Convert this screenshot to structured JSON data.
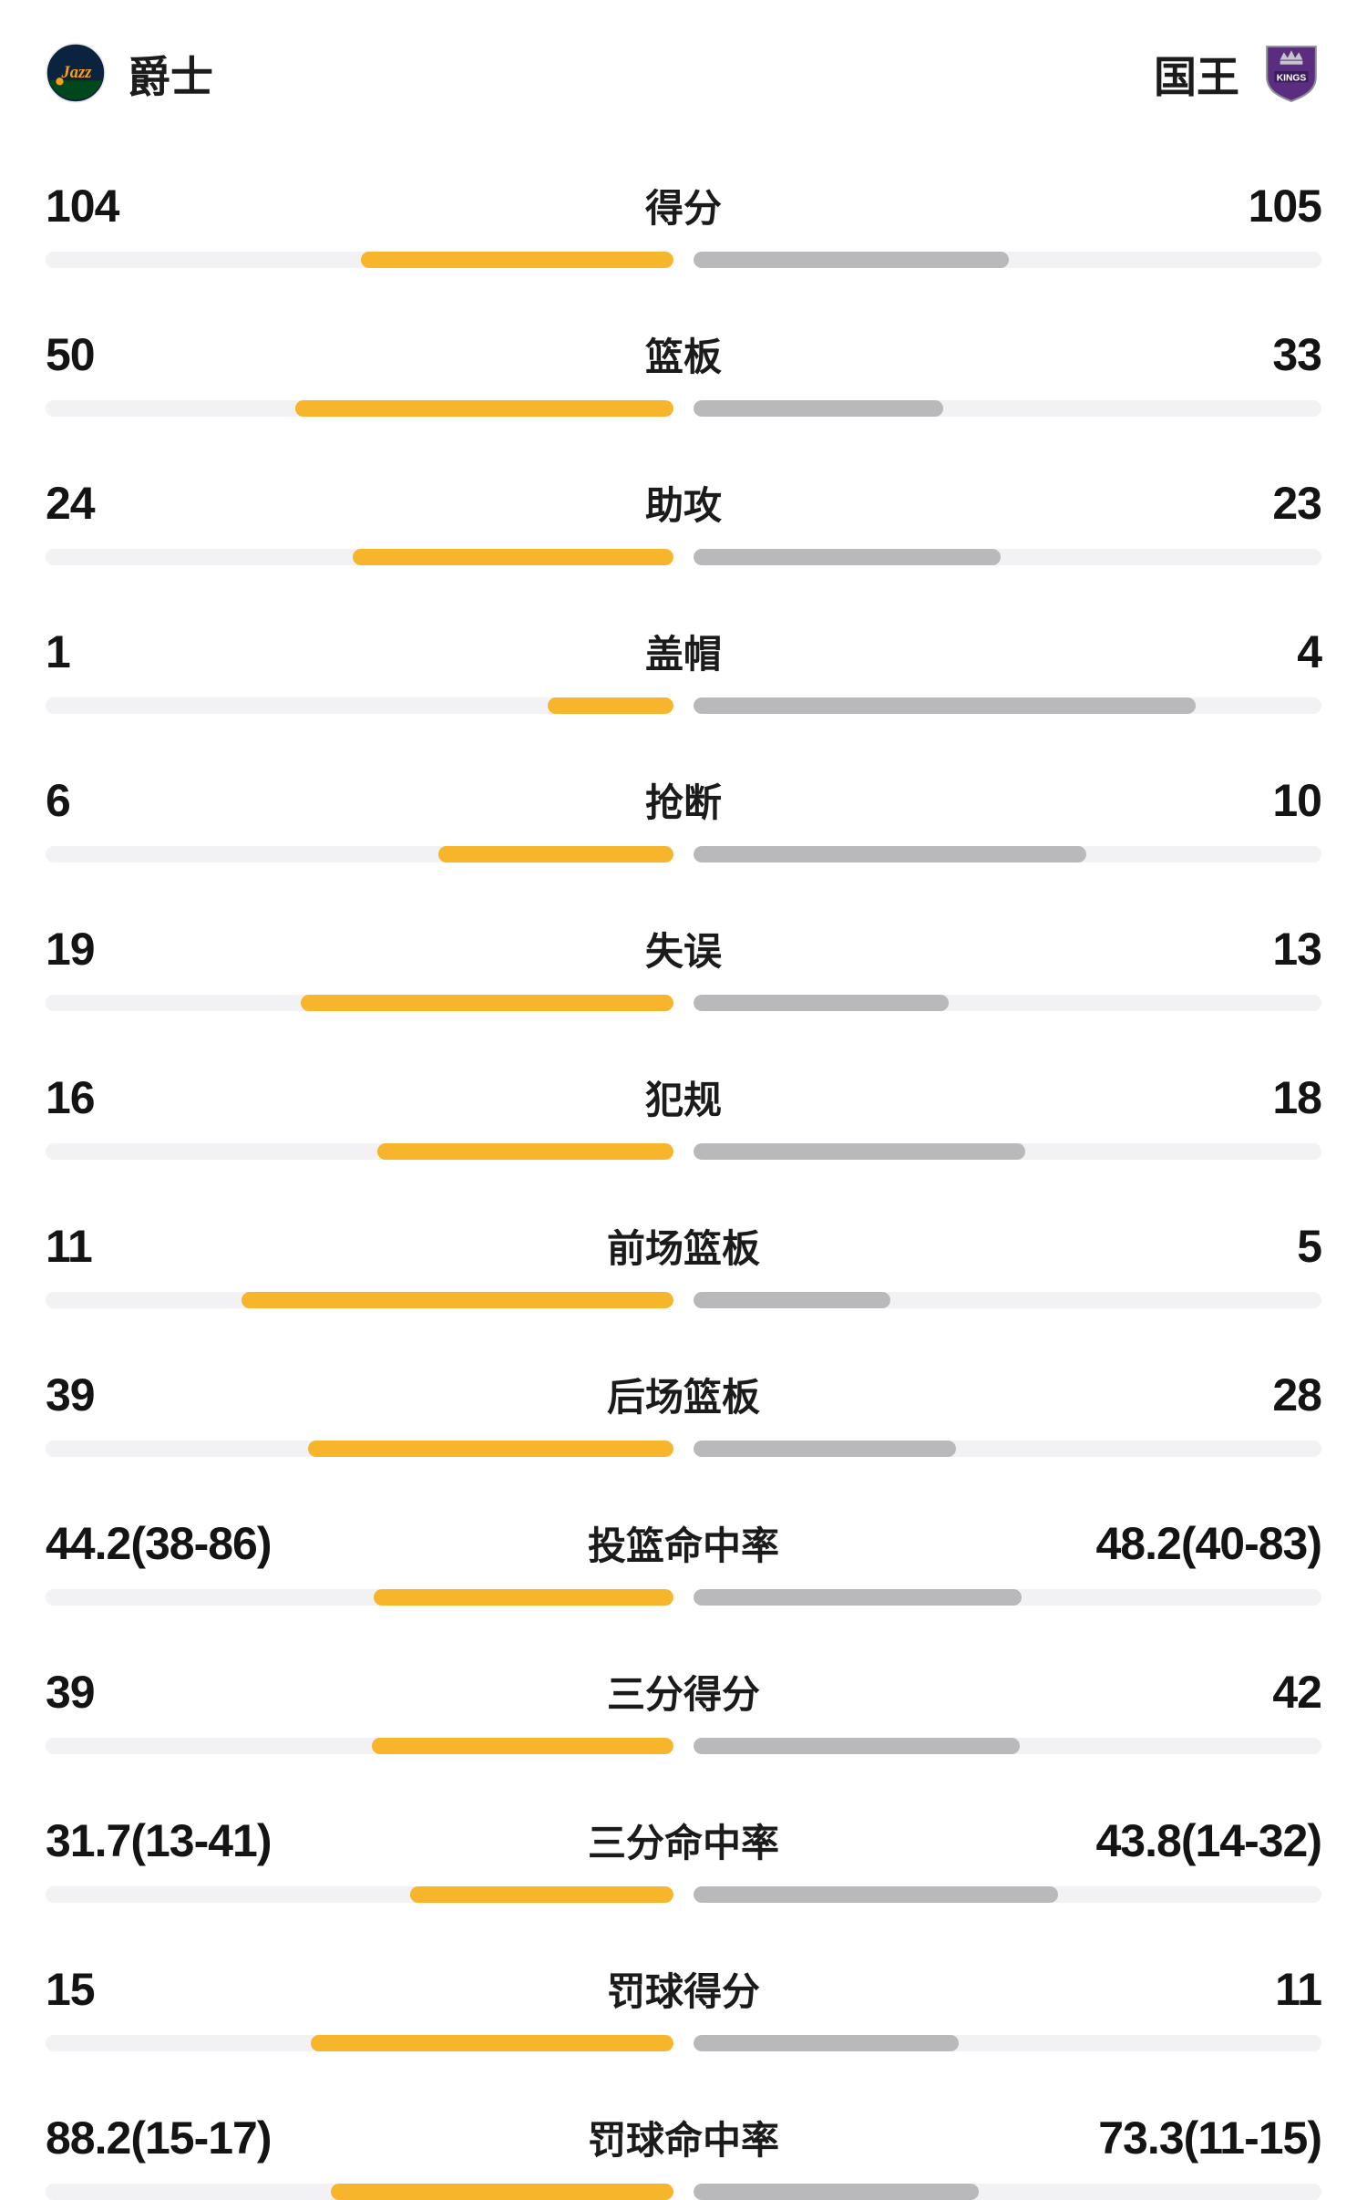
{
  "header": {
    "home": {
      "name": "爵士",
      "logo": "jazz-logo"
    },
    "away": {
      "name": "国王",
      "logo": "kings-logo"
    }
  },
  "colors": {
    "home_bar": "#F7B52C",
    "away_bar": "#B9B9BB",
    "track": "#F2F2F4"
  },
  "chart_data": {
    "type": "bar",
    "categories": [
      "得分",
      "篮板",
      "助攻",
      "盖帽",
      "抢断",
      "失误",
      "犯规",
      "前场篮板",
      "后场篮板",
      "投篮命中率",
      "三分得分",
      "三分命中率",
      "罚球得分",
      "罚球命中率"
    ],
    "series": [
      {
        "name": "爵士",
        "values": [
          104,
          50,
          24,
          1,
          6,
          19,
          16,
          11,
          39,
          44.2,
          39,
          31.7,
          15,
          88.2
        ]
      },
      {
        "name": "国王",
        "values": [
          105,
          33,
          23,
          4,
          10,
          13,
          18,
          5,
          28,
          48.2,
          42,
          43.8,
          11,
          73.3
        ]
      }
    ],
    "legend_position": "top",
    "grid": false,
    "orientation": "horizontal-paired"
  },
  "stats": [
    {
      "label": "得分",
      "home": "104",
      "away": "105",
      "home_value": 104,
      "away_value": 105
    },
    {
      "label": "篮板",
      "home": "50",
      "away": "33",
      "home_value": 50,
      "away_value": 33
    },
    {
      "label": "助攻",
      "home": "24",
      "away": "23",
      "home_value": 24,
      "away_value": 23
    },
    {
      "label": "盖帽",
      "home": "1",
      "away": "4",
      "home_value": 1,
      "away_value": 4
    },
    {
      "label": "抢断",
      "home": "6",
      "away": "10",
      "home_value": 6,
      "away_value": 10
    },
    {
      "label": "失误",
      "home": "19",
      "away": "13",
      "home_value": 19,
      "away_value": 13
    },
    {
      "label": "犯规",
      "home": "16",
      "away": "18",
      "home_value": 16,
      "away_value": 18
    },
    {
      "label": "前场篮板",
      "home": "11",
      "away": "5",
      "home_value": 11,
      "away_value": 5
    },
    {
      "label": "后场篮板",
      "home": "39",
      "away": "28",
      "home_value": 39,
      "away_value": 28
    },
    {
      "label": "投篮命中率",
      "home": "44.2(38-86)",
      "away": "48.2(40-83)",
      "home_value": 44.2,
      "away_value": 48.2
    },
    {
      "label": "三分得分",
      "home": "39",
      "away": "42",
      "home_value": 39,
      "away_value": 42
    },
    {
      "label": "三分命中率",
      "home": "31.7(13-41)",
      "away": "43.8(14-32)",
      "home_value": 31.7,
      "away_value": 43.8
    },
    {
      "label": "罚球得分",
      "home": "15",
      "away": "11",
      "home_value": 15,
      "away_value": 11
    },
    {
      "label": "罚球命中率",
      "home": "88.2(15-17)",
      "away": "73.3(11-15)",
      "home_value": 88.2,
      "away_value": 73.3
    }
  ]
}
